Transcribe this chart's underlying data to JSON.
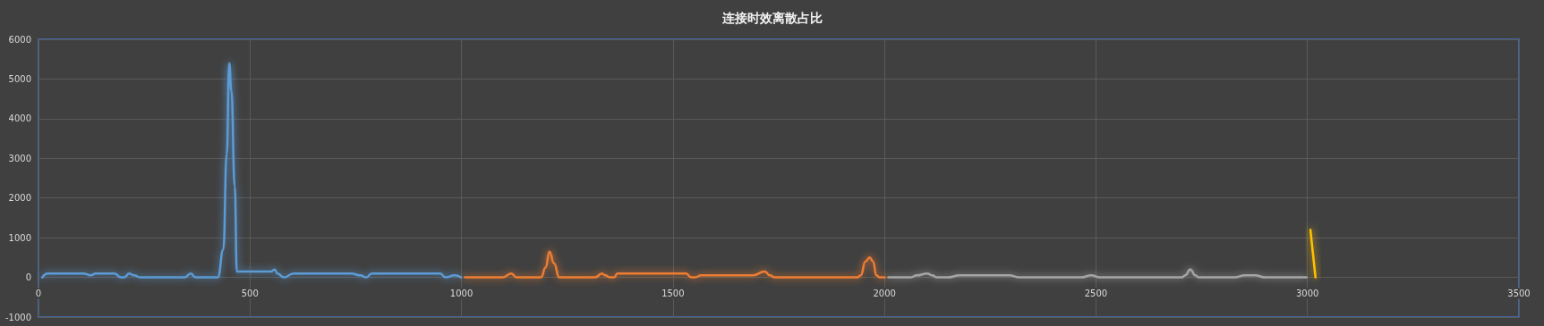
{
  "chart_data": {
    "type": "line",
    "title": "连接时效离散占比",
    "xlim": [
      0,
      3500
    ],
    "xticks": [
      0,
      500,
      1000,
      1500,
      2000,
      2500,
      3000,
      3500
    ],
    "ylim": [
      -1000,
      6000
    ],
    "yticks": [
      -1000,
      0,
      1000,
      2000,
      3000,
      4000,
      5000,
      6000
    ],
    "grid": true,
    "marker": "none",
    "line_style": "solid",
    "series": [
      {
        "color": "#5b9bd5",
        "x": [
          9,
          22,
          45,
          67,
          105,
          124,
          135,
          150,
          169,
          180,
          194,
          203,
          214,
          226,
          241,
          346,
          360,
          371,
          407,
          424,
          437,
          445,
          451,
          456,
          464,
          469,
          497,
          512,
          535,
          550,
          558,
          565,
          580,
          603,
          633,
          663,
          701,
          739,
          761,
          775,
          788,
          814,
          852,
          890,
          920,
          939,
          950,
          962,
          984,
          999
        ],
        "values": [
          0,
          100,
          100,
          100,
          100,
          50,
          100,
          100,
          100,
          100,
          0,
          0,
          100,
          50,
          0,
          0,
          100,
          0,
          0,
          0,
          700,
          3100,
          5400,
          4700,
          2300,
          150,
          150,
          150,
          150,
          150,
          200,
          100,
          0,
          100,
          100,
          100,
          100,
          100,
          50,
          0,
          100,
          100,
          100,
          100,
          100,
          100,
          100,
          0,
          50,
          0
        ]
      },
      {
        "color": "#ed7d31",
        "x": [
          1008,
          1097,
          1118,
          1130,
          1182,
          1188,
          1199,
          1208,
          1219,
          1231,
          1259,
          1316,
          1332,
          1340,
          1350,
          1361,
          1369,
          1389,
          1405,
          1429,
          1454,
          1486,
          1519,
          1531,
          1543,
          1551,
          1567,
          1608,
          1648,
          1689,
          1717,
          1729,
          1741,
          1810,
          1867,
          1936,
          1944,
          1955,
          1965,
          1973,
          1981,
          1989,
          2001
        ],
        "values": [
          0,
          0,
          100,
          0,
          0,
          0,
          250,
          650,
          350,
          0,
          0,
          0,
          100,
          50,
          0,
          0,
          100,
          100,
          100,
          100,
          100,
          100,
          100,
          100,
          0,
          0,
          50,
          50,
          50,
          50,
          150,
          50,
          0,
          0,
          0,
          0,
          50,
          400,
          500,
          400,
          50,
          0,
          0
        ]
      },
      {
        "color": "#a5a5a5",
        "x": [
          2009,
          2061,
          2077,
          2101,
          2113,
          2124,
          2149,
          2178,
          2222,
          2295,
          2319,
          2384,
          2464,
          2489,
          2509,
          2586,
          2703,
          2711,
          2723,
          2735,
          2743,
          2788,
          2828,
          2852,
          2876,
          2901,
          2949,
          2998
        ],
        "values": [
          0,
          0,
          50,
          100,
          50,
          0,
          0,
          50,
          50,
          50,
          0,
          0,
          0,
          50,
          0,
          0,
          0,
          50,
          200,
          50,
          0,
          0,
          0,
          50,
          50,
          0,
          0,
          0
        ]
      },
      {
        "color": "#ffc000",
        "x": [
          3007,
          3019
        ],
        "values": [
          1200,
          0
        ]
      }
    ]
  }
}
